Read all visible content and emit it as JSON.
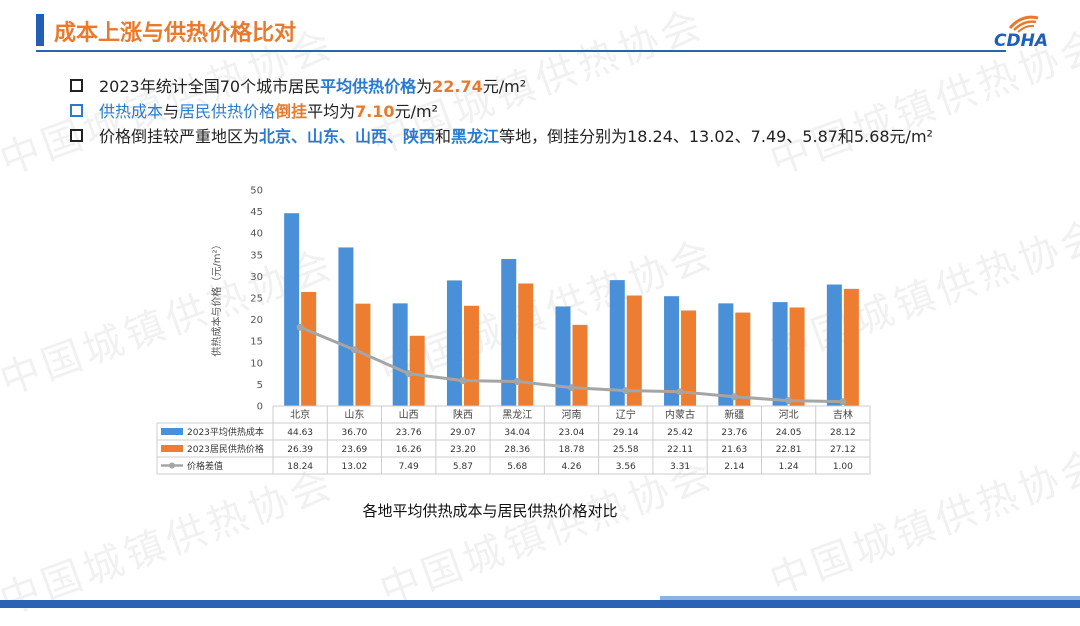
{
  "slide": {
    "title": "成本上涨与供热价格比对",
    "watermark": "中国城镇供热协会",
    "logo_text": "CDHA",
    "caption": "各地平均供热成本与居民供热价格对比"
  },
  "bullets": [
    {
      "style": "black",
      "segments": [
        {
          "t": "2023年统计全国70个城市居民",
          "c": "plain"
        },
        {
          "t": "平均供热价格",
          "c": "hl-blue"
        },
        {
          "t": "为",
          "c": "plain"
        },
        {
          "t": "22.74",
          "c": "hl-orange"
        },
        {
          "t": "元/m²",
          "c": "plain"
        }
      ]
    },
    {
      "style": "blue",
      "segments": [
        {
          "t": "供热成本",
          "c": "hl-blue-n"
        },
        {
          "t": "与",
          "c": "plain"
        },
        {
          "t": "居民供热价格",
          "c": "hl-blue-n"
        },
        {
          "t": "倒挂",
          "c": "hl-orange-b"
        },
        {
          "t": "平均为",
          "c": "plain"
        },
        {
          "t": "7.10",
          "c": "hl-orange"
        },
        {
          "t": "元/m²",
          "c": "plain"
        }
      ]
    },
    {
      "style": "black",
      "segments": [
        {
          "t": "价格倒挂较严重地区为",
          "c": "plain"
        },
        {
          "t": "北京、山东、山西、陕西",
          "c": "hl-blue"
        },
        {
          "t": "和",
          "c": "plain"
        },
        {
          "t": "黑龙江",
          "c": "hl-blue"
        },
        {
          "t": "等地，倒挂分别为18.24、13.02、7.49、5.87和5.68元/m²",
          "c": "plain"
        }
      ]
    }
  ],
  "chart_data": {
    "type": "bar",
    "ylabel": "供热成本与价格（元/m²）",
    "ylim": [
      0,
      50
    ],
    "yticks": [
      0,
      5,
      10,
      15,
      20,
      25,
      30,
      35,
      40,
      45,
      50
    ],
    "categories": [
      "北京",
      "山东",
      "山西",
      "陕西",
      "黑龙江",
      "河南",
      "辽宁",
      "内蒙古",
      "新疆",
      "河北",
      "吉林"
    ],
    "series": [
      {
        "name": "2023平均供热成本",
        "kind": "bar",
        "color": "#4a90d9",
        "values": [
          44.63,
          36.7,
          23.76,
          29.07,
          34.04,
          23.04,
          29.14,
          25.42,
          23.76,
          24.05,
          28.12
        ],
        "labels": [
          "44.63",
          "36.70",
          "23.76",
          "29.07",
          "34.04",
          "23.04",
          "29.14",
          "25.42",
          "23.76",
          "24.05",
          "28.12"
        ]
      },
      {
        "name": "2023居民供热价格",
        "kind": "bar",
        "color": "#ed7d31",
        "values": [
          26.39,
          23.69,
          16.26,
          23.2,
          28.36,
          18.78,
          25.58,
          22.11,
          21.63,
          22.81,
          27.12
        ],
        "labels": [
          "26.39",
          "23.69",
          "16.26",
          "23.20",
          "28.36",
          "18.78",
          "25.58",
          "22.11",
          "21.63",
          "22.81",
          "27.12"
        ]
      },
      {
        "name": "价格差值",
        "kind": "line",
        "color": "#a5a5a5",
        "values": [
          18.24,
          13.02,
          7.49,
          5.87,
          5.68,
          4.26,
          3.56,
          3.31,
          2.14,
          1.24,
          1.0
        ],
        "labels": [
          "18.24",
          "13.02",
          "7.49",
          "5.87",
          "5.68",
          "4.26",
          "3.56",
          "3.31",
          "2.14",
          "1.24",
          "1.00"
        ]
      }
    ],
    "grid": false,
    "legend": "data-table-below"
  }
}
